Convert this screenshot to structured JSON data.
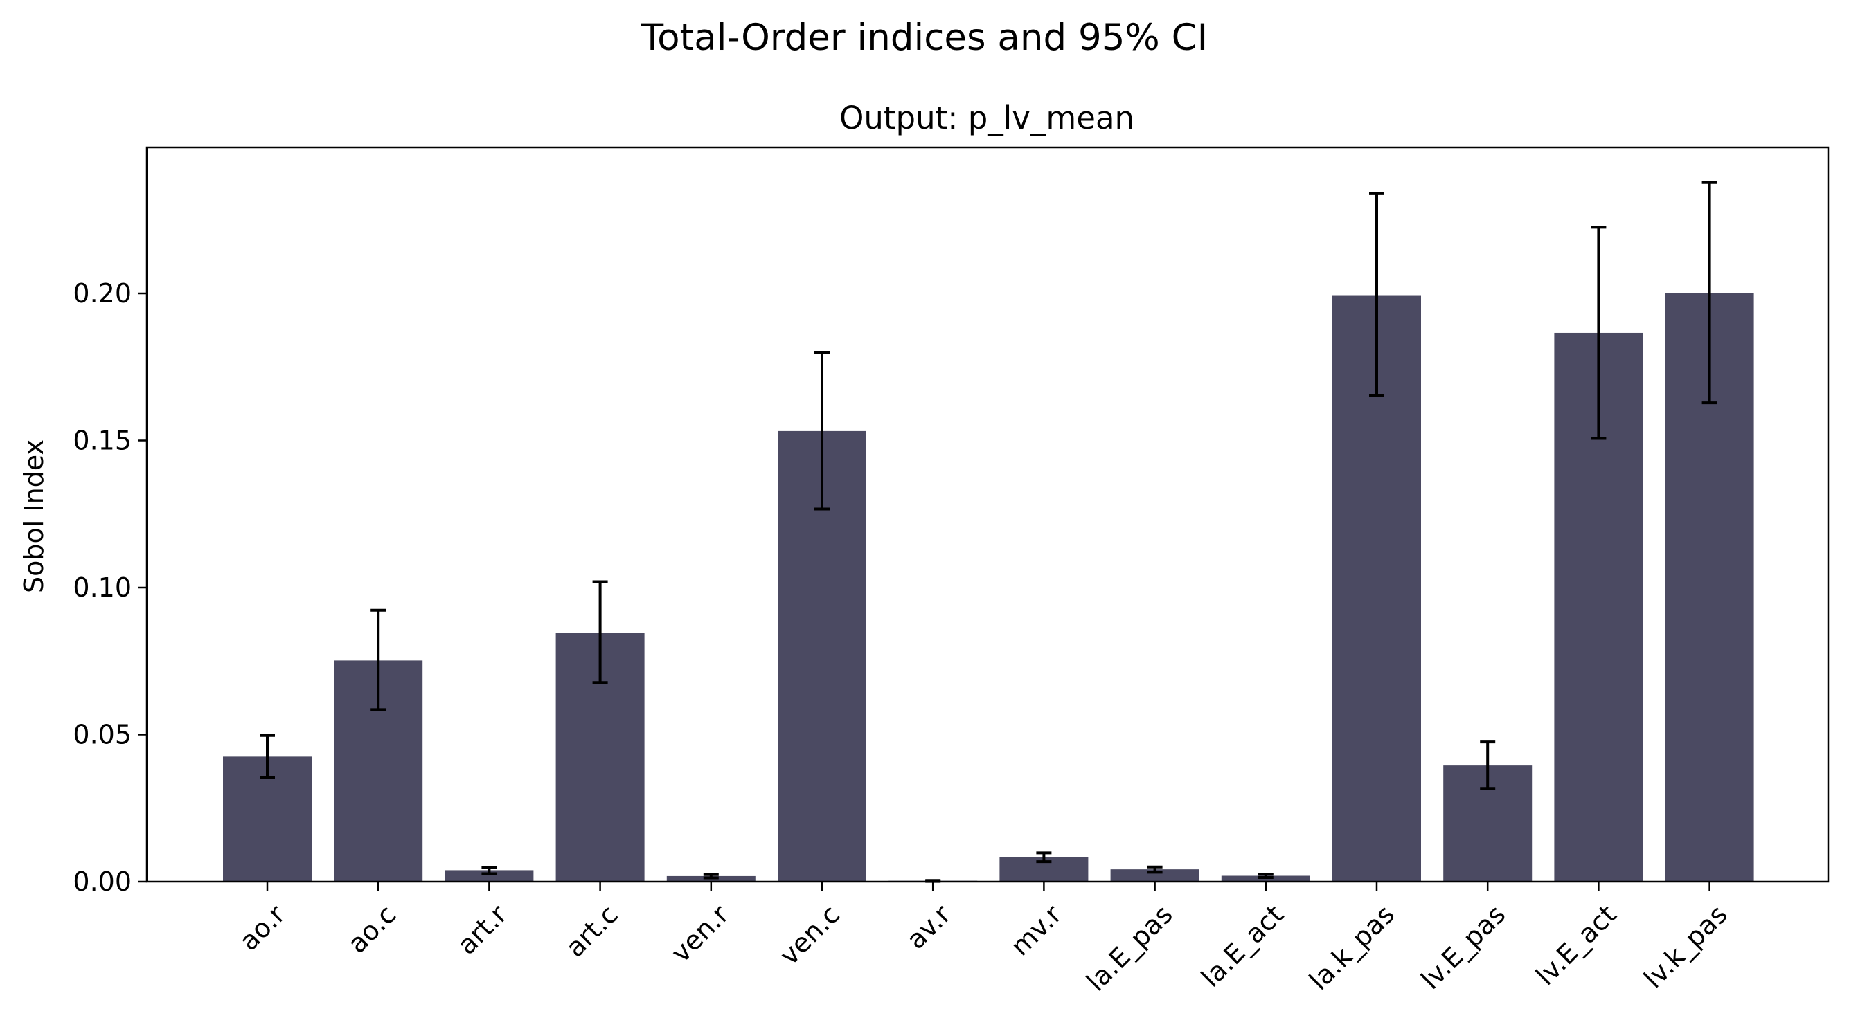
{
  "chart_data": {
    "type": "bar",
    "suptitle": "Total-Order indices and 95% CI",
    "title": "Output: p_lv_mean",
    "xlabel": "",
    "ylabel": "Sobol Index",
    "categories": [
      "ao.r",
      "ao.c",
      "art.r",
      "art.c",
      "ven.r",
      "ven.c",
      "av.r",
      "mv.r",
      "la.E_pas",
      "la.E_act",
      "la.k_pas",
      "lv.E_pas",
      "lv.E_act",
      "lv.k_pas"
    ],
    "values": [
      0.0425,
      0.0752,
      0.0039,
      0.0845,
      0.0019,
      0.1532,
      0.0003,
      0.0084,
      0.0042,
      0.002,
      0.1994,
      0.0395,
      0.1866,
      0.2001
    ],
    "ci_lower": [
      0.0355,
      0.0585,
      0.0027,
      0.0677,
      0.0013,
      0.1267,
      0.0001,
      0.0068,
      0.0032,
      0.0014,
      0.1652,
      0.0317,
      0.1507,
      0.1628
    ],
    "ci_upper": [
      0.0497,
      0.0923,
      0.0048,
      0.102,
      0.0024,
      0.18,
      0.0004,
      0.0098,
      0.005,
      0.0025,
      0.2339,
      0.0475,
      0.2225,
      0.2377
    ],
    "yticks": [
      "0.00",
      "0.05",
      "0.10",
      "0.15",
      "0.20"
    ],
    "ylim": [
      0,
      0.25
    ],
    "grid": false,
    "bar_color": "#4b4a62",
    "errorbar_color": "#000000"
  }
}
